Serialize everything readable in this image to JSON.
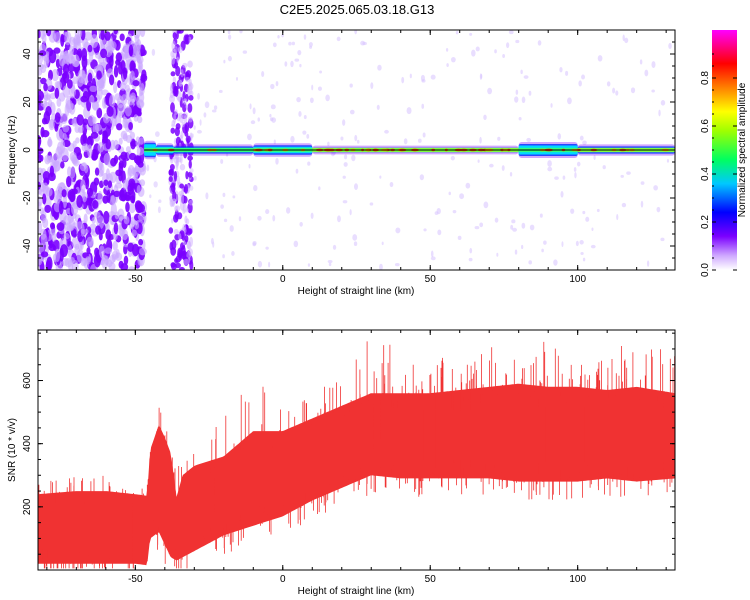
{
  "figure_title": "C2E5.2025.065.03.18.G13",
  "chart_data": [
    {
      "type": "heatmap",
      "title": "",
      "xlabel": "Height of straight line (km)",
      "ylabel": "Frequency (Hz)",
      "xlim": [
        -83,
        133
      ],
      "ylim": [
        -50,
        50
      ],
      "xticks": [
        -50,
        0,
        50,
        100
      ],
      "yticks": [
        -40,
        -20,
        0,
        20,
        40
      ],
      "colorbar": {
        "label": "Normalized spectral amplitude",
        "range": [
          0.0,
          1.0
        ],
        "ticks": [
          0.0,
          0.2,
          0.4,
          0.6,
          0.8
        ],
        "colormap": "rainbow",
        "colors": [
          "#ffffff",
          "#7b00ff",
          "#0000ff",
          "#00ffff",
          "#00ff00",
          "#ffff00",
          "#ff8000",
          "#ff0000",
          "#ff00ff"
        ]
      },
      "noise_region": {
        "x_range": [
          -83,
          -47
        ],
        "amplitude": 0.05
      },
      "noise_band": {
        "x_range": [
          -38,
          -31
        ],
        "amplitude": 0.05
      },
      "main_line": {
        "frequency": 0,
        "x_range": [
          -47,
          133
        ],
        "color": "#000000"
      },
      "band_segments": [
        {
          "x": [
            -47,
            -43
          ],
          "half_width_hz": 3,
          "peak": 0.5
        },
        {
          "x": [
            -43,
            -37
          ],
          "half_width_hz": 2,
          "peak": 0.45
        },
        {
          "x": [
            -37,
            -10
          ],
          "half_width_hz": 1.5,
          "peak": 0.55
        },
        {
          "x": [
            -10,
            10
          ],
          "half_width_hz": 2,
          "peak": 0.55
        },
        {
          "x": [
            10,
            80
          ],
          "half_width_hz": 1,
          "peak": 0.8
        },
        {
          "x": [
            80,
            100
          ],
          "half_width_hz": 2.5,
          "peak": 0.6
        },
        {
          "x": [
            100,
            133
          ],
          "half_width_hz": 1.5,
          "peak": 0.75
        }
      ]
    },
    {
      "type": "line",
      "title": "",
      "xlabel": "Height of straight line (km)",
      "ylabel": "SNR (10 * v/v)",
      "xlim": [
        -83,
        133
      ],
      "ylim": [
        0,
        760
      ],
      "xticks": [
        -50,
        0,
        50,
        100
      ],
      "yticks": [
        200,
        400,
        600
      ],
      "color": "#f03232",
      "series": [
        {
          "x": [
            -83,
            -70,
            -60,
            -50,
            -46,
            -45,
            -42,
            -40,
            -38,
            -36,
            -34,
            -30,
            -20,
            -10,
            0,
            10,
            20,
            30,
            40,
            50,
            60,
            70,
            80,
            90,
            100,
            110,
            120,
            133
          ],
          "upper": [
            240,
            250,
            250,
            240,
            235,
            380,
            460,
            420,
            370,
            230,
            300,
            330,
            360,
            440,
            440,
            480,
            520,
            560,
            560,
            560,
            570,
            580,
            590,
            580,
            580,
            570,
            580,
            560
          ],
          "lower": [
            20,
            20,
            20,
            20,
            15,
            100,
            120,
            80,
            40,
            30,
            40,
            60,
            110,
            140,
            170,
            220,
            260,
            300,
            290,
            290,
            290,
            290,
            280,
            280,
            280,
            290,
            280,
            290
          ],
          "spike_max": [
            280,
            300,
            300,
            260,
            260,
            420,
            520,
            480,
            430,
            300,
            400,
            380,
            500,
            670,
            500,
            560,
            640,
            740,
            700,
            660,
            690,
            710,
            700,
            730,
            690,
            700,
            720,
            690
          ]
        }
      ]
    }
  ]
}
